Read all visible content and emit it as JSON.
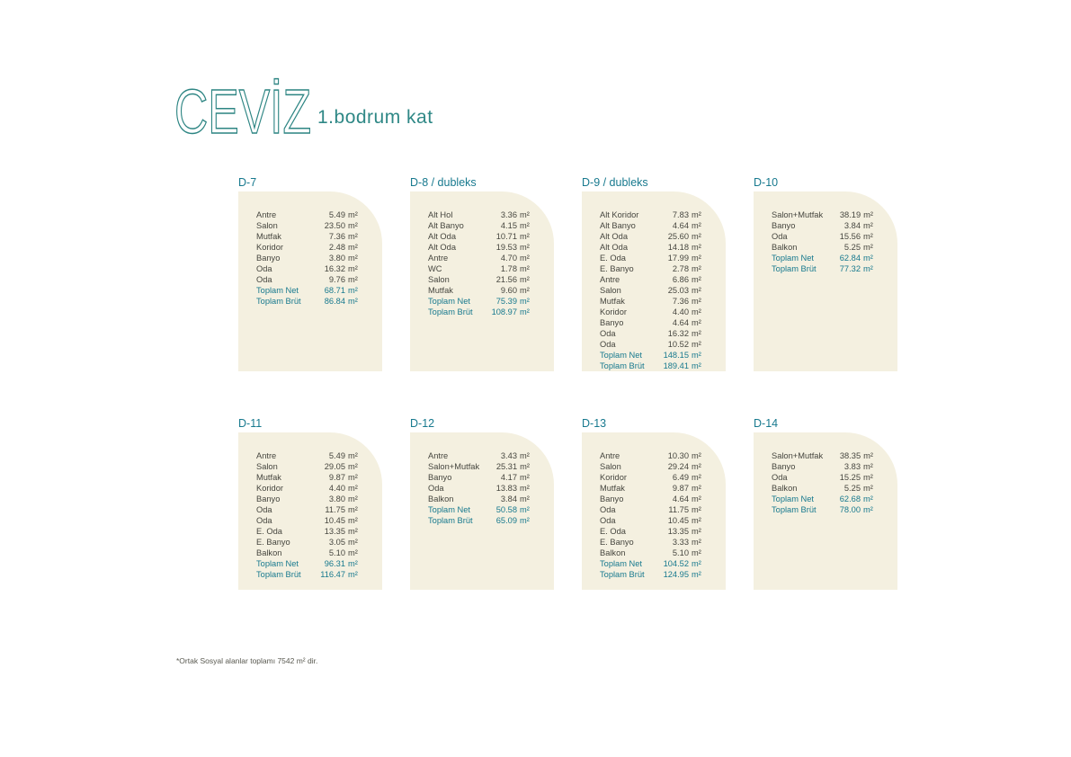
{
  "page": {
    "title": "CEVİZ",
    "subtitle": "1.bodrum kat",
    "footnote": "*Ortak Sosyal alanlar toplamı 7542 m² dir."
  },
  "labels": {
    "unit": "m²"
  },
  "colors": {
    "accent_teal": "#17798e",
    "logo_teal": "#2d8583",
    "card_background": "#f4f0e0",
    "body_text": "#46463f"
  },
  "cards": [
    {
      "title": "D-7",
      "rooms": [
        {
          "name": "Antre",
          "area": "5.49"
        },
        {
          "name": "Salon",
          "area": "23.50"
        },
        {
          "name": "Mutfak",
          "area": "7.36"
        },
        {
          "name": "Koridor",
          "area": "2.48"
        },
        {
          "name": "Banyo",
          "area": "3.80"
        },
        {
          "name": "Oda",
          "area": "16.32"
        },
        {
          "name": "Oda",
          "area": "9.76"
        }
      ],
      "totals": [
        {
          "label": "Toplam Net",
          "area": "68.71"
        },
        {
          "label": "Toplam Brüt",
          "area": "86.84"
        }
      ]
    },
    {
      "title": "D-8 / dubleks",
      "rooms": [
        {
          "name": "Alt Hol",
          "area": "3.36"
        },
        {
          "name": "Alt Banyo",
          "area": "4.15"
        },
        {
          "name": "Alt Oda",
          "area": "10.71"
        },
        {
          "name": "Alt Oda",
          "area": "19.53"
        },
        {
          "name": "Antre",
          "area": "4.70"
        },
        {
          "name": "WC",
          "area": "1.78"
        },
        {
          "name": "Salon",
          "area": "21.56"
        },
        {
          "name": "Mutfak",
          "area": "9.60"
        }
      ],
      "totals": [
        {
          "label": "Toplam Net",
          "area": "75.39"
        },
        {
          "label": "Toplam Brüt",
          "area": "108.97"
        }
      ]
    },
    {
      "title": "D-9 / dubleks",
      "rooms": [
        {
          "name": "Alt Koridor",
          "area": "7.83"
        },
        {
          "name": "Alt Banyo",
          "area": "4.64"
        },
        {
          "name": "Alt Oda",
          "area": "25.60"
        },
        {
          "name": "Alt Oda",
          "area": "14.18"
        },
        {
          "name": "E. Oda",
          "area": "17.99"
        },
        {
          "name": "E. Banyo",
          "area": "2.78"
        },
        {
          "name": "Antre",
          "area": "6.86"
        },
        {
          "name": "Salon",
          "area": "25.03"
        },
        {
          "name": "Mutfak",
          "area": "7.36"
        },
        {
          "name": "Koridor",
          "area": "4.40"
        },
        {
          "name": "Banyo",
          "area": "4.64"
        },
        {
          "name": "Oda",
          "area": "16.32"
        },
        {
          "name": "Oda",
          "area": "10.52"
        }
      ],
      "totals": [
        {
          "label": "Toplam Net",
          "area": "148.15"
        },
        {
          "label": "Toplam Brüt",
          "area": "189.41"
        }
      ]
    },
    {
      "title": "D-10",
      "rooms": [
        {
          "name": "Salon+Mutfak",
          "area": "38.19"
        },
        {
          "name": "Banyo",
          "area": "3.84"
        },
        {
          "name": "Oda",
          "area": "15.56"
        },
        {
          "name": "Balkon",
          "area": "5.25"
        }
      ],
      "totals": [
        {
          "label": "Toplam Net",
          "area": "62.84"
        },
        {
          "label": "Toplam Brüt",
          "area": "77.32"
        }
      ]
    },
    {
      "title": "D-11",
      "rooms": [
        {
          "name": "Antre",
          "area": "5.49"
        },
        {
          "name": "Salon",
          "area": "29.05"
        },
        {
          "name": "Mutfak",
          "area": "9.87"
        },
        {
          "name": "Koridor",
          "area": "4.40"
        },
        {
          "name": "Banyo",
          "area": "3.80"
        },
        {
          "name": "Oda",
          "area": "11.75"
        },
        {
          "name": "Oda",
          "area": "10.45"
        },
        {
          "name": "E. Oda",
          "area": "13.35"
        },
        {
          "name": "E. Banyo",
          "area": "3.05"
        },
        {
          "name": "Balkon",
          "area": "5.10"
        }
      ],
      "totals": [
        {
          "label": "Toplam Net",
          "area": "96.31"
        },
        {
          "label": "Toplam Brüt",
          "area": "116.47"
        }
      ]
    },
    {
      "title": "D-12",
      "rooms": [
        {
          "name": "Antre",
          "area": "3.43"
        },
        {
          "name": "Salon+Mutfak",
          "area": "25.31"
        },
        {
          "name": "Banyo",
          "area": "4.17"
        },
        {
          "name": "Oda",
          "area": "13.83"
        },
        {
          "name": "Balkon",
          "area": "3.84"
        }
      ],
      "totals": [
        {
          "label": "Toplam Net",
          "area": "50.58"
        },
        {
          "label": "Toplam Brüt",
          "area": "65.09"
        }
      ]
    },
    {
      "title": "D-13",
      "rooms": [
        {
          "name": "Antre",
          "area": "10.30"
        },
        {
          "name": "Salon",
          "area": "29.24"
        },
        {
          "name": "Koridor",
          "area": "6.49"
        },
        {
          "name": "Mutfak",
          "area": "9.87"
        },
        {
          "name": "Banyo",
          "area": "4.64"
        },
        {
          "name": "Oda",
          "area": "11.75"
        },
        {
          "name": "Oda",
          "area": "10.45"
        },
        {
          "name": "E. Oda",
          "area": "13.35"
        },
        {
          "name": "E. Banyo",
          "area": "3.33"
        },
        {
          "name": "Balkon",
          "area": "5.10"
        }
      ],
      "totals": [
        {
          "label": "Toplam Net",
          "area": "104.52"
        },
        {
          "label": "Toplam Brüt",
          "area": "124.95"
        }
      ]
    },
    {
      "title": "D-14",
      "rooms": [
        {
          "name": "Salon+Mutfak",
          "area": "38.35"
        },
        {
          "name": "Banyo",
          "area": "3.83"
        },
        {
          "name": "Oda",
          "area": "15.25"
        },
        {
          "name": "Balkon",
          "area": "5.25"
        }
      ],
      "totals": [
        {
          "label": "Toplam Net",
          "area": "62.68"
        },
        {
          "label": "Toplam Brüt",
          "area": "78.00"
        }
      ]
    }
  ]
}
